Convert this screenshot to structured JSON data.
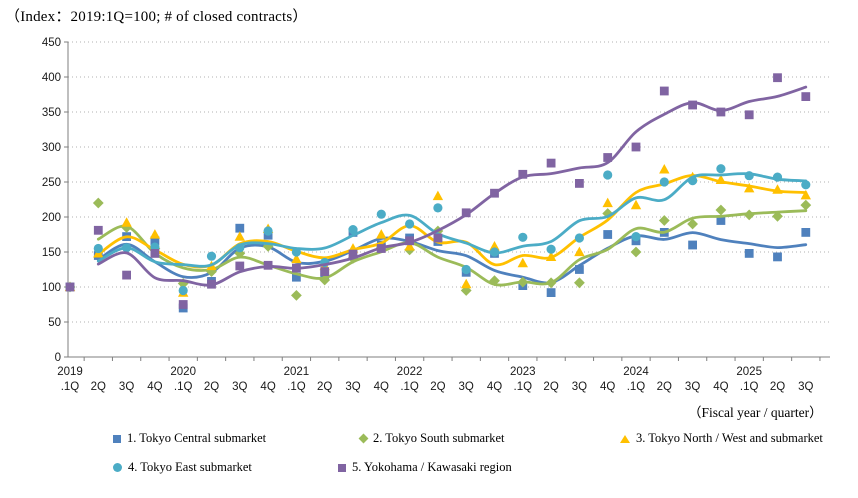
{
  "title": "（Index：2019:1Q=100; # of closed contracts）",
  "x_axis_caption": "（Fiscal year / quarter）",
  "chart_data": {
    "type": "line",
    "subtype": "quarterly markers with smoothed trend lines",
    "index_note": "2019:1Q=100; # of closed contracts",
    "grid": "dotted horizontal gridlines",
    "legend_position": "bottom, two rows",
    "y_axis": {
      "min": 0,
      "max": 450,
      "step": 50,
      "ticks": [
        0,
        50,
        100,
        150,
        200,
        250,
        300,
        350,
        400,
        450
      ]
    },
    "x_years": [
      "2019",
      "2020",
      "2021",
      "2022",
      "2023",
      "2024",
      "2025"
    ],
    "year_tick_indices": [
      0,
      4,
      8,
      12,
      16,
      20,
      24
    ],
    "x_quarters": [
      ".1Q",
      "2Q",
      "3Q",
      "4Q",
      ".1Q",
      "2Q",
      "3Q",
      "4Q",
      ".1Q",
      "2Q",
      "3Q",
      "4Q",
      ".1Q",
      "2Q",
      "3Q",
      "4Q",
      ".1Q",
      "2Q",
      "3Q",
      "4Q",
      ".1Q",
      "2Q",
      "3Q",
      "4Q",
      ".1Q",
      "2Q",
      "3Q"
    ],
    "series": [
      {
        "name": "1. Tokyo Central submarket",
        "color": "#4F81BD",
        "marker": "square",
        "values": [
          100,
          145,
          172,
          166,
          70,
          108,
          184,
          174,
          114,
          118,
          178,
          160,
          170,
          165,
          121,
          148,
          102,
          92,
          125,
          175,
          166,
          178,
          160,
          195,
          148,
          143,
          178
        ]
      },
      {
        "name": "2. Tokyo South submarket",
        "color": "#9BBB59",
        "marker": "diamond",
        "values": [
          100,
          220,
          185,
          155,
          105,
          122,
          148,
          158,
          88,
          110,
          141,
          157,
          153,
          180,
          95,
          109,
          107,
          106,
          106,
          205,
          150,
          195,
          190,
          210,
          203,
          201,
          217
        ]
      },
      {
        "name": "3. Tokyo North / West and  submarket",
        "color": "#FFC000",
        "marker": "triangle",
        "values": [
          100,
          148,
          192,
          175,
          92,
          130,
          172,
          183,
          140,
          130,
          155,
          175,
          158,
          230,
          104,
          158,
          134,
          143,
          150,
          220,
          217,
          268,
          257,
          253,
          241,
          239,
          231
        ]
      },
      {
        "name": "4. Tokyo East submarket",
        "color": "#4BACC6",
        "marker": "circle",
        "values": [
          100,
          155,
          156,
          157,
          95,
          144,
          156,
          180,
          150,
          135,
          182,
          204,
          190,
          213,
          125,
          150,
          171,
          154,
          170,
          260,
          172,
          250,
          252,
          269,
          259,
          257,
          246
        ]
      },
      {
        "name": "5. Yokohama / Kawasaki region",
        "color": "#8064A2",
        "marker": "square",
        "values": [
          100,
          181,
          117,
          148,
          75,
          104,
          130,
          131,
          127,
          122,
          147,
          155,
          166,
          170,
          206,
          234,
          261,
          277,
          248,
          285,
          300,
          380,
          360,
          350,
          346,
          399,
          372
        ]
      }
    ]
  }
}
